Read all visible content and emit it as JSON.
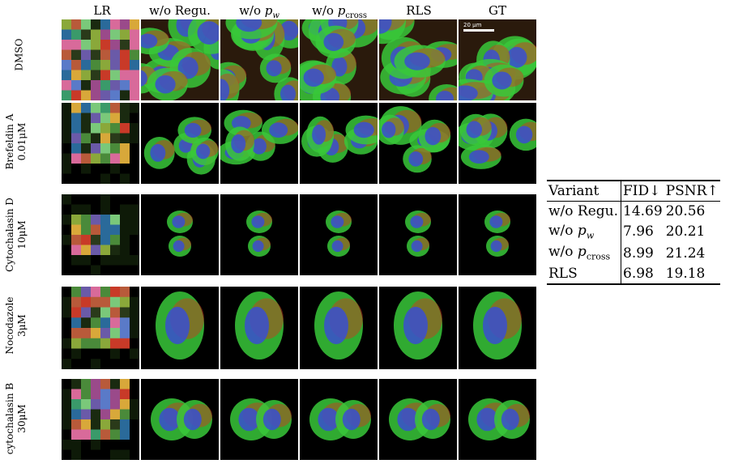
{
  "columns": [
    "LR",
    "w/o Regu.",
    "w/o p_w",
    "w/o p_cross",
    "RLS",
    "GT"
  ],
  "rows": [
    {
      "name": "DMSO",
      "dose": "",
      "style": "dense"
    },
    {
      "name": "Brefeldin A",
      "dose": "0.01μM",
      "style": "spread"
    },
    {
      "name": "Cytochalasin D",
      "dose": "10μM",
      "style": "pair"
    },
    {
      "name": "Nocodazole",
      "dose": "3μM",
      "style": "single"
    },
    {
      "name": "cytochalasin B",
      "dose": "30μM",
      "style": "cluster"
    }
  ],
  "scale_bar_label": "20 μm",
  "table": {
    "headers": [
      "Variant",
      "FID↓",
      "PSNR↑"
    ],
    "rows": [
      [
        "w/o Regu.",
        "14.69",
        "20.56"
      ],
      [
        "w/o p_w",
        "7.96",
        "20.21"
      ],
      [
        "w/o p_cross",
        "8.99",
        "21.24"
      ],
      [
        "RLS",
        "6.98",
        "19.18"
      ]
    ]
  },
  "colors": {
    "nucleus": "#3a4fd0",
    "actin": "#d8321e",
    "tubulin": "#38c83a"
  }
}
